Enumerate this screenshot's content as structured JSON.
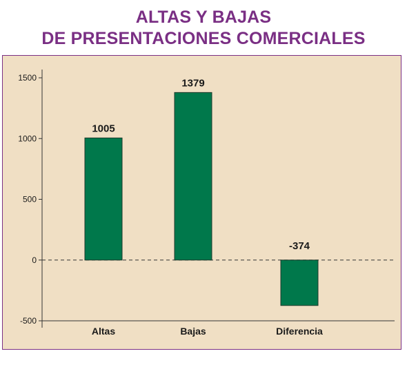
{
  "title_lines": [
    "ALTAS Y BAJAS",
    "DE PRESENTACIONES COMERCIALES"
  ],
  "colors": {
    "title": "#7a2f84",
    "panel_background": "#f0dfc4",
    "bar": "#00784b",
    "axis": "#333333"
  },
  "chart_data": {
    "type": "bar",
    "title": "ALTAS Y BAJAS DE PRESENTACIONES COMERCIALES",
    "categories": [
      "Altas",
      "Bajas",
      "Diferencia"
    ],
    "values": [
      1005,
      1379,
      -374
    ],
    "data_labels": [
      "1005",
      "1379",
      "-374"
    ],
    "ylim": [
      -500,
      1500
    ],
    "yticks": [
      1500,
      1000,
      500,
      0,
      -500
    ],
    "zero_line": "dashed",
    "grid": false,
    "legend": "none"
  }
}
